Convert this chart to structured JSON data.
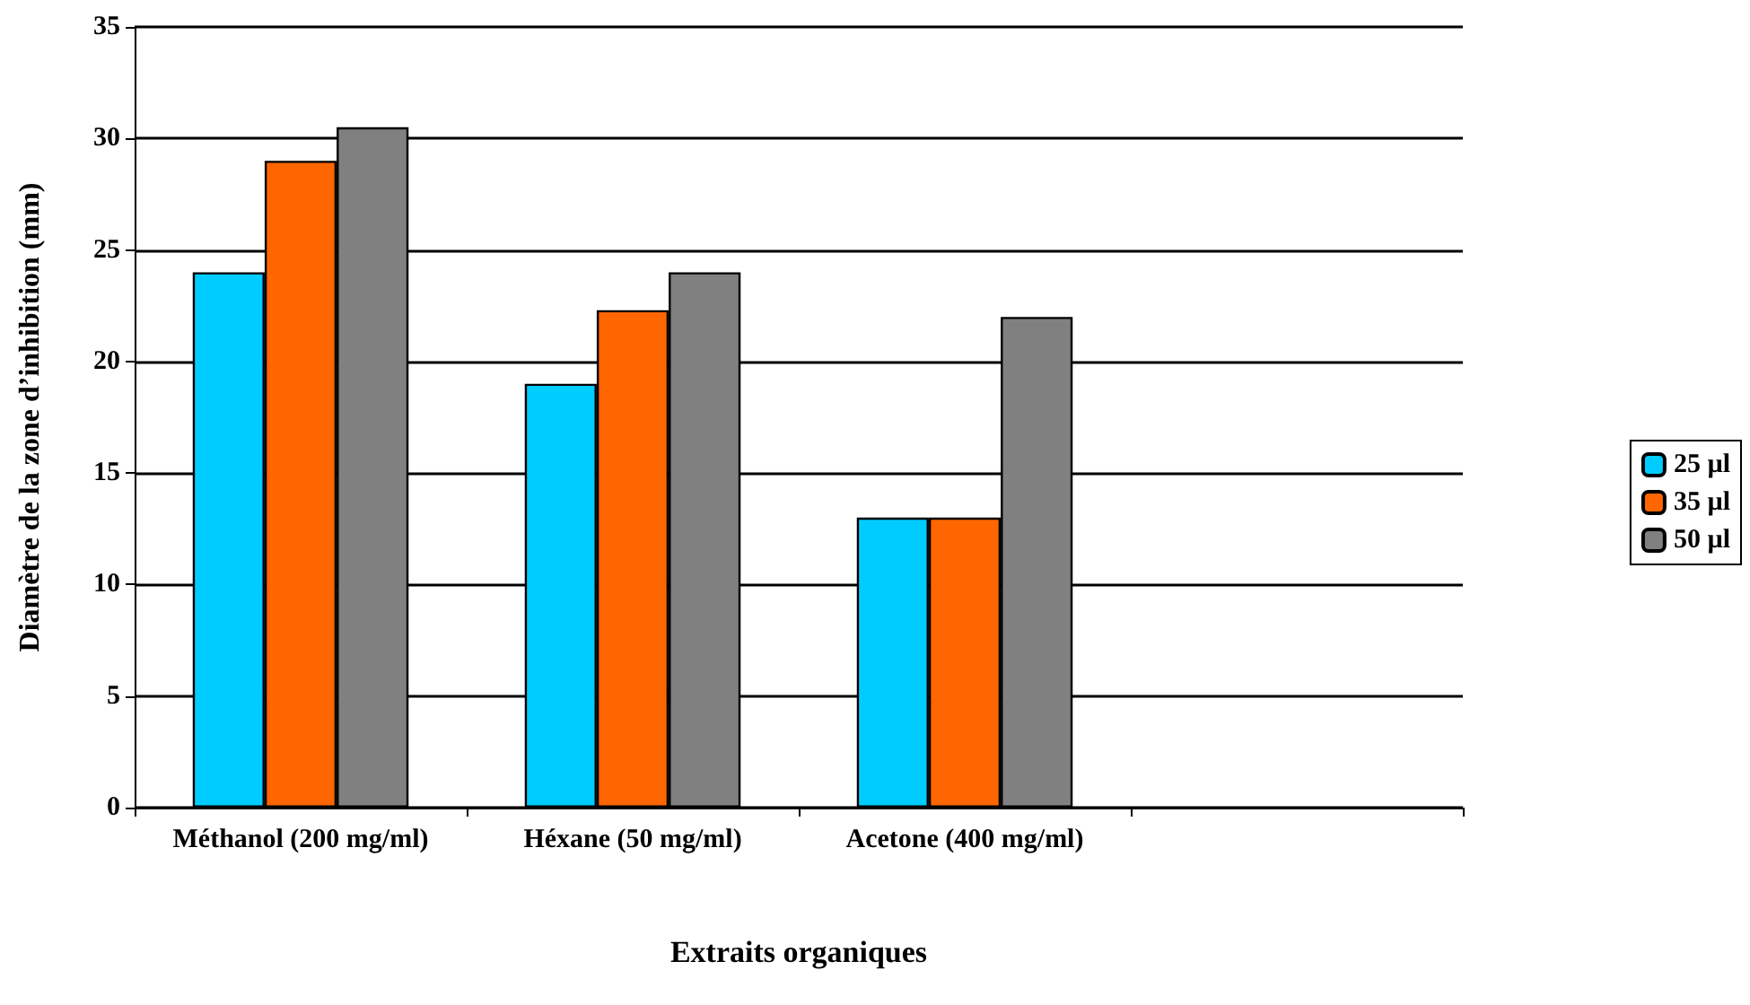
{
  "chart_data": {
    "type": "bar",
    "xlabel": "Extraits organiques",
    "ylabel": "Diamètre de la zone d’inhibition (mm)",
    "categories": [
      "Méthanol (200 mg/ml)",
      "Héxane (50 mg/ml)",
      "Acetone (400 mg/ml)",
      null
    ],
    "series": [
      {
        "name": "25 µl",
        "color": "#00ccff",
        "values": [
          24,
          19,
          13,
          null
        ]
      },
      {
        "name": "35 µl",
        "color": "#ff6600",
        "values": [
          29,
          22.3,
          13,
          null
        ]
      },
      {
        "name": "50 µl",
        "color": "#808080",
        "values": [
          30.5,
          24,
          22,
          null
        ]
      }
    ],
    "ylim": [
      0,
      35
    ],
    "yticks": [
      0,
      5,
      10,
      15,
      20,
      25,
      30,
      35
    ],
    "grid": "y",
    "legend": "right"
  }
}
